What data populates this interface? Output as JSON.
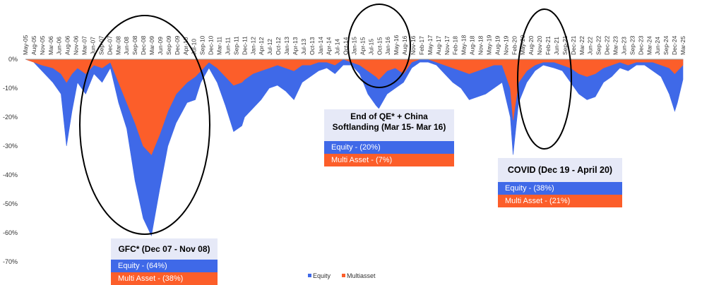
{
  "chart_data": {
    "type": "area",
    "title": "",
    "xlabel": "",
    "ylabel": "",
    "x_tick_labels": [
      "May-05",
      "Aug-05",
      "Nov-05",
      "Mar-06",
      "Jun-06",
      "Aug-06",
      "Nov-06",
      "Mar-07",
      "Jun-07",
      "Sep-07",
      "Dec-07",
      "Mar-08",
      "Jun-08",
      "Sep-08",
      "Dec-08",
      "Mar-09",
      "Jun-09",
      "Sep-09",
      "Dec-09",
      "Apr-10",
      "Jul-10",
      "Sep-10",
      "Dec-10",
      "Mar-11",
      "Jun-11",
      "Sep-11",
      "Dec-11",
      "Jan-12",
      "Apr-12",
      "Jul-12",
      "Oct-12",
      "Jan-13",
      "Apr-13",
      "Jul-13",
      "Oct-13",
      "Jan-14",
      "Apr-14",
      "Jul-14",
      "Oct-14",
      "Jan-15",
      "Apr-15",
      "Jul-15",
      "Oct-15",
      "Jan-16",
      "May-16",
      "Aug-16",
      "Nov-16",
      "Feb-17",
      "May-17",
      "Aug-17",
      "Nov-17",
      "Feb-18",
      "May-18",
      "Aug-18",
      "Nov-18",
      "May-19",
      "Aug-19",
      "Nov-19",
      "Feb-20",
      "May-20",
      "Aug-20",
      "Nov-20",
      "Feb-21",
      "Jun-21",
      "Sep-21",
      "Dec-21",
      "Mar-22",
      "Jun-22",
      "Sep-22",
      "Dec-22",
      "Mar-23",
      "Jun-23",
      "Sep-23",
      "Dec-23",
      "Mar-24",
      "Jun-24",
      "Sep-24",
      "Dec-24",
      "Mar-25"
    ],
    "y_ticks": [
      "0%",
      "-10%",
      "-20%",
      "-30%",
      "-40%",
      "-50%",
      "-60%",
      "-70%"
    ],
    "ylim": [
      -70,
      0
    ],
    "series": [
      {
        "name": "Equity",
        "color": "#3f69e8",
        "points": [
          [
            "2005-05",
            0
          ],
          [
            "2005-08",
            -1
          ],
          [
            "2005-11",
            -4
          ],
          [
            "2006-03",
            -8
          ],
          [
            "2006-06",
            -12
          ],
          [
            "2006-08",
            -30
          ],
          [
            "2006-10",
            -18
          ],
          [
            "2006-12",
            -8
          ],
          [
            "2007-03",
            -12
          ],
          [
            "2007-06",
            -5
          ],
          [
            "2007-09",
            -8
          ],
          [
            "2007-12",
            -3
          ],
          [
            "2008-03",
            -15
          ],
          [
            "2008-06",
            -24
          ],
          [
            "2008-09",
            -42
          ],
          [
            "2008-12",
            -55
          ],
          [
            "2009-03",
            -61
          ],
          [
            "2009-06",
            -45
          ],
          [
            "2009-09",
            -30
          ],
          [
            "2009-12",
            -22
          ],
          [
            "2010-04",
            -15
          ],
          [
            "2010-07",
            -14
          ],
          [
            "2010-09",
            -8
          ],
          [
            "2010-12",
            -3
          ],
          [
            "2011-03",
            -8
          ],
          [
            "2011-06",
            -16
          ],
          [
            "2011-09",
            -25
          ],
          [
            "2011-12",
            -23
          ],
          [
            "2012-01",
            -20
          ],
          [
            "2012-04",
            -17
          ],
          [
            "2012-07",
            -14
          ],
          [
            "2012-10",
            -10
          ],
          [
            "2013-01",
            -9
          ],
          [
            "2013-04",
            -11
          ],
          [
            "2013-07",
            -14
          ],
          [
            "2013-10",
            -8
          ],
          [
            "2014-01",
            -6
          ],
          [
            "2014-04",
            -4
          ],
          [
            "2014-07",
            -3
          ],
          [
            "2014-10",
            -5
          ],
          [
            "2015-01",
            -2
          ],
          [
            "2015-04",
            -2
          ],
          [
            "2015-07",
            -5
          ],
          [
            "2015-10",
            -12
          ],
          [
            "2016-01",
            -16
          ],
          [
            "2016-02",
            -17
          ],
          [
            "2016-05",
            -12
          ],
          [
            "2016-08",
            -10
          ],
          [
            "2016-11",
            -8
          ],
          [
            "2017-02",
            -3
          ],
          [
            "2017-05",
            -1
          ],
          [
            "2017-08",
            -1
          ],
          [
            "2017-11",
            -2
          ],
          [
            "2018-02",
            -5
          ],
          [
            "2018-05",
            -8
          ],
          [
            "2018-08",
            -10
          ],
          [
            "2018-11",
            -14
          ],
          [
            "2019-05",
            -12
          ],
          [
            "2019-08",
            -10
          ],
          [
            "2019-11",
            -8
          ],
          [
            "2020-02",
            -20
          ],
          [
            "2020-03",
            -33
          ],
          [
            "2020-05",
            -15
          ],
          [
            "2020-08",
            -8
          ],
          [
            "2020-11",
            -4
          ],
          [
            "2021-02",
            -2
          ],
          [
            "2021-06",
            -3
          ],
          [
            "2021-09",
            -4
          ],
          [
            "2021-12",
            -8
          ],
          [
            "2022-03",
            -12
          ],
          [
            "2022-06",
            -14
          ],
          [
            "2022-09",
            -13
          ],
          [
            "2022-12",
            -8
          ],
          [
            "2023-03",
            -6
          ],
          [
            "2023-06",
            -3
          ],
          [
            "2023-09",
            -4
          ],
          [
            "2023-12",
            -2
          ],
          [
            "2024-03",
            -2
          ],
          [
            "2024-06",
            -4
          ],
          [
            "2024-09",
            -6
          ],
          [
            "2024-12",
            -12
          ],
          [
            "2025-02",
            -18
          ],
          [
            "2025-03",
            -15
          ],
          [
            "2025-05",
            -7
          ]
        ]
      },
      {
        "name": "Multiasset",
        "color": "#fc5e2a",
        "points": [
          [
            "2005-05",
            0
          ],
          [
            "2005-08",
            -1
          ],
          [
            "2005-11",
            -2
          ],
          [
            "2006-03",
            -3
          ],
          [
            "2006-06",
            -5
          ],
          [
            "2006-08",
            -8
          ],
          [
            "2006-10",
            -5
          ],
          [
            "2006-12",
            -3
          ],
          [
            "2007-03",
            -5
          ],
          [
            "2007-06",
            -2
          ],
          [
            "2007-09",
            -3
          ],
          [
            "2007-12",
            -1
          ],
          [
            "2008-03",
            -8
          ],
          [
            "2008-06",
            -15
          ],
          [
            "2008-09",
            -22
          ],
          [
            "2008-12",
            -30
          ],
          [
            "2009-03",
            -33
          ],
          [
            "2009-06",
            -26
          ],
          [
            "2009-09",
            -18
          ],
          [
            "2009-12",
            -12
          ],
          [
            "2010-04",
            -8
          ],
          [
            "2010-07",
            -6
          ],
          [
            "2010-09",
            -4
          ],
          [
            "2010-12",
            -1
          ],
          [
            "2011-03",
            -3
          ],
          [
            "2011-06",
            -6
          ],
          [
            "2011-09",
            -9
          ],
          [
            "2011-12",
            -8
          ],
          [
            "2012-01",
            -7
          ],
          [
            "2012-04",
            -5
          ],
          [
            "2012-07",
            -4
          ],
          [
            "2012-10",
            -3
          ],
          [
            "2013-01",
            -2
          ],
          [
            "2013-04",
            -3
          ],
          [
            "2013-07",
            -4
          ],
          [
            "2013-10",
            -2
          ],
          [
            "2014-01",
            -2
          ],
          [
            "2014-04",
            -1
          ],
          [
            "2014-07",
            -1
          ],
          [
            "2014-10",
            -2
          ],
          [
            "2015-01",
            0
          ],
          [
            "2015-04",
            -1
          ],
          [
            "2015-07",
            -2
          ],
          [
            "2015-10",
            -4
          ],
          [
            "2016-01",
            -6
          ],
          [
            "2016-02",
            -7
          ],
          [
            "2016-05",
            -4
          ],
          [
            "2016-08",
            -3
          ],
          [
            "2016-11",
            -5
          ],
          [
            "2017-02",
            -1
          ],
          [
            "2017-05",
            0
          ],
          [
            "2017-08",
            0
          ],
          [
            "2017-11",
            -1
          ],
          [
            "2018-02",
            -2
          ],
          [
            "2018-05",
            -3
          ],
          [
            "2018-08",
            -4
          ],
          [
            "2018-11",
            -5
          ],
          [
            "2019-05",
            -3
          ],
          [
            "2019-08",
            -2
          ],
          [
            "2019-11",
            -2
          ],
          [
            "2020-02",
            -10
          ],
          [
            "2020-03",
            -21
          ],
          [
            "2020-05",
            -8
          ],
          [
            "2020-08",
            -4
          ],
          [
            "2020-11",
            -2
          ],
          [
            "2021-02",
            -1
          ],
          [
            "2021-06",
            -1
          ],
          [
            "2021-09",
            -2
          ],
          [
            "2021-12",
            -3
          ],
          [
            "2022-03",
            -5
          ],
          [
            "2022-06",
            -6
          ],
          [
            "2022-09",
            -5
          ],
          [
            "2022-12",
            -3
          ],
          [
            "2023-03",
            -2
          ],
          [
            "2023-06",
            -1
          ],
          [
            "2023-09",
            -2
          ],
          [
            "2023-12",
            -1
          ],
          [
            "2024-03",
            -1
          ],
          [
            "2024-06",
            -1
          ],
          [
            "2024-09",
            -2
          ],
          [
            "2024-12",
            -3
          ],
          [
            "2025-02",
            -5
          ],
          [
            "2025-03",
            -4
          ],
          [
            "2025-05",
            -2
          ]
        ]
      }
    ],
    "legend": {
      "position": "bottom-center",
      "labels": [
        "Equity",
        "Multiasset"
      ]
    },
    "grid": false
  },
  "callouts": {
    "gfc": {
      "title": "GFC* (Dec 07 - Nov 08)",
      "equity": "Equity - (64%)",
      "multi": "Multi Asset - (38%)"
    },
    "qe": {
      "title": "End of QE* + China Softlanding (Mar 15- Mar 16)",
      "equity": "Equity - (20%)",
      "multi": "Multi Asset - (7%)"
    },
    "covid": {
      "title": "COVID (Dec 19 - April 20)",
      "equity": "Equity - (38%)",
      "multi": "Multi Asset - (21%)"
    }
  },
  "colors": {
    "equity": "#3f69e8",
    "multi": "#fc5e2a",
    "callout_bg": "#e6e9f7",
    "ellipse": "#000000"
  }
}
